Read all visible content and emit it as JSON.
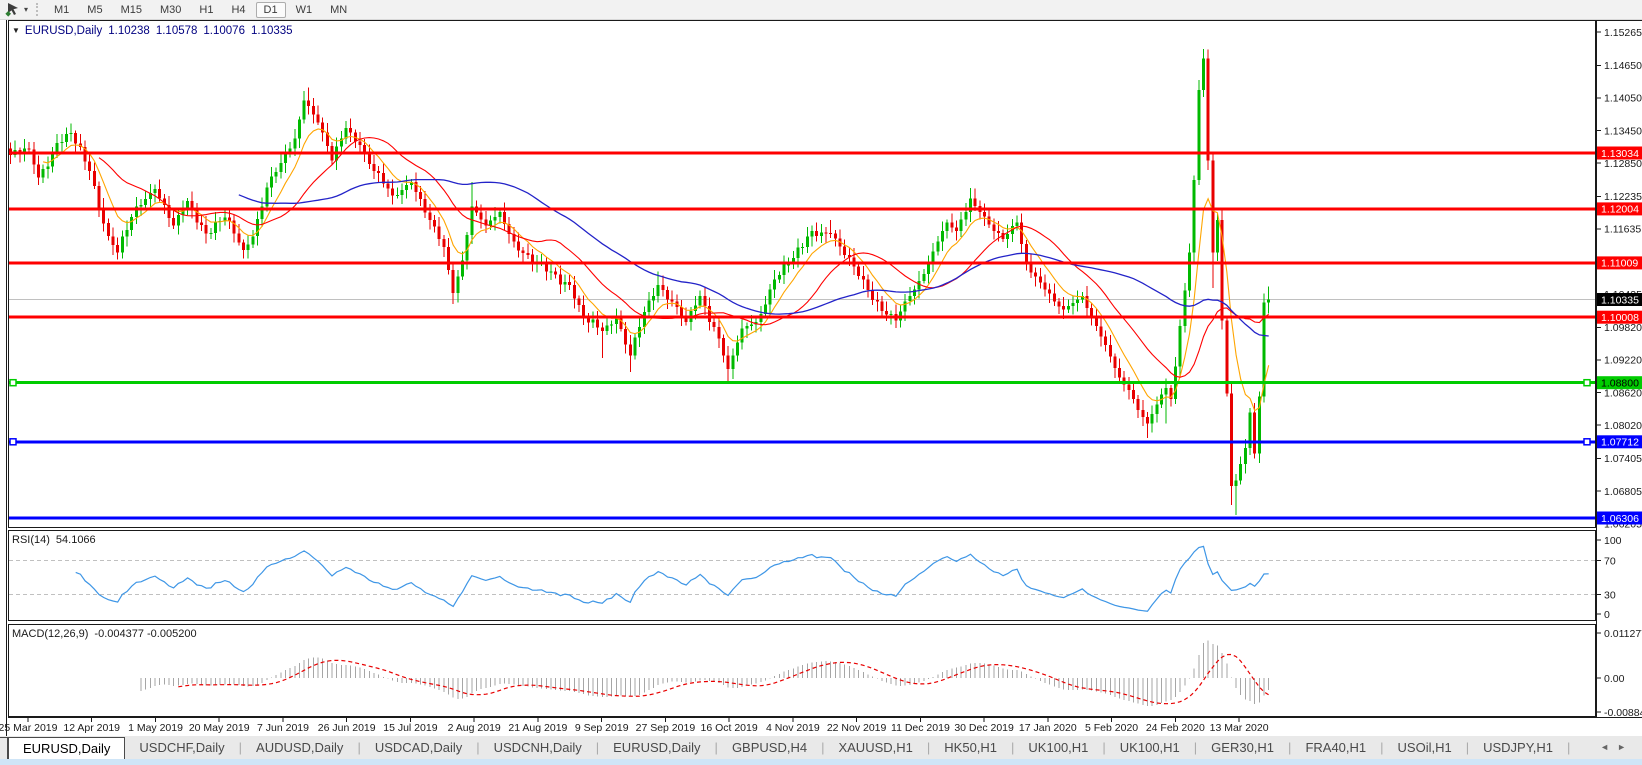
{
  "toolbar": {
    "chart_cursor_icon": "cursor-pointer-icon",
    "dropdown_glyph": "▾",
    "timeframes": [
      {
        "label": "M1",
        "active": false
      },
      {
        "label": "M5",
        "active": false
      },
      {
        "label": "M15",
        "active": false
      },
      {
        "label": "M30",
        "active": false
      },
      {
        "label": "H1",
        "active": false
      },
      {
        "label": "H4",
        "active": false
      },
      {
        "label": "D1",
        "active": true
      },
      {
        "label": "W1",
        "active": false
      },
      {
        "label": "MN",
        "active": false
      }
    ]
  },
  "chart_header": {
    "collapse_glyph": "▼",
    "symbol": "EURUSD,Daily",
    "open": "1.10238",
    "high": "1.10578",
    "low": "1.10076",
    "close": "1.10335"
  },
  "rsi_panel": {
    "title_label": "RSI(14)",
    "title_value": "54.1066",
    "scale_labels": [
      "100",
      "70",
      "30",
      "0"
    ],
    "overbought": 70,
    "oversold": 30
  },
  "macd_panel": {
    "title_label": "MACD(12,26,9)",
    "title_values": "-0.004377 -0.005200",
    "scale_labels": [
      "0.011277",
      "0.00",
      "-0.008845"
    ],
    "scale_values": [
      0.011277,
      0,
      -0.008845
    ]
  },
  "tabs": [
    {
      "label": "EURUSD,Daily",
      "active": true
    },
    {
      "label": "USDCHF,Daily",
      "active": false
    },
    {
      "label": "AUDUSD,Daily",
      "active": false
    },
    {
      "label": "USDCAD,Daily",
      "active": false
    },
    {
      "label": "USDCNH,Daily",
      "active": false
    },
    {
      "label": "EURUSD,Daily",
      "active": false
    },
    {
      "label": "GBPUSD,H4",
      "active": false
    },
    {
      "label": "XAUUSD,H1",
      "active": false
    },
    {
      "label": "HK50,H1",
      "active": false
    },
    {
      "label": "UK100,H1",
      "active": false
    },
    {
      "label": "UK100,H1",
      "active": false
    },
    {
      "label": "GER30,H1",
      "active": false
    },
    {
      "label": "FRA40,H1",
      "active": false
    },
    {
      "label": "USOil,H1",
      "active": false
    },
    {
      "label": "USDJPY,H1",
      "active": false
    }
  ],
  "tab_scroll": {
    "left_glyph": "◄",
    "right_glyph": "►"
  },
  "colors": {
    "candle_up": "#00B900",
    "candle_down": "#E80000",
    "ma_fast": "#FFA500",
    "ma_mid": "#FF0000",
    "ma_slow": "#2323C8",
    "bid_line": "#C0C0C0",
    "rsi_line": "#3E96E6",
    "rsi_level_dash": "#C0C0C0",
    "macd_hist": "#A6A6A6",
    "macd_signal": "#E80000",
    "axis_text": "#1a1a1a",
    "frame": "#1a1a1a"
  },
  "chart_data": {
    "type": "candlestick",
    "symbol": "EURUSD",
    "timeframe": "Daily",
    "title": "EURUSD,Daily",
    "ohlc_current": {
      "open": 1.10238,
      "high": 1.10578,
      "low": 1.10076,
      "close": 1.10335
    },
    "bid_price": 1.10335,
    "price_ticks": [
      1.15265,
      1.1465,
      1.1405,
      1.1345,
      1.1285,
      1.12235,
      1.11635,
      1.10435,
      1.0982,
      1.0922,
      1.0862,
      1.0802,
      1.07405,
      1.06805,
      1.06205
    ],
    "x_axis_dates": [
      "25 Mar 2019",
      "12 Apr 2019",
      "1 May 2019",
      "20 May 2019",
      "7 Jun 2019",
      "26 Jun 2019",
      "15 Jul 2019",
      "2 Aug 2019",
      "21 Aug 2019",
      "9 Sep 2019",
      "27 Sep 2019",
      "16 Oct 2019",
      "4 Nov 2019",
      "22 Nov 2019",
      "11 Dec 2019",
      "30 Dec 2019",
      "17 Jan 2020",
      "5 Feb 2020",
      "24 Feb 2020",
      "13 Mar 2020"
    ],
    "horizontal_lines": [
      {
        "price": 1.13034,
        "label": "1.13034",
        "color": "#FF0000",
        "text_color": "#FFFFFF",
        "handle": false
      },
      {
        "price": 1.12004,
        "label": "1.12004",
        "color": "#FF0000",
        "text_color": "#FFFFFF",
        "handle": false
      },
      {
        "price": 1.11009,
        "label": "1.11009",
        "color": "#FF0000",
        "text_color": "#FFFFFF",
        "handle": false
      },
      {
        "price": 1.10008,
        "label": "1.10008",
        "color": "#FF0000",
        "text_color": "#FFFFFF",
        "handle": false
      },
      {
        "price": 1.088,
        "label": "1.08800",
        "color": "#00CC00",
        "text_color": "#000000",
        "handle": true
      },
      {
        "price": 1.07712,
        "label": "1.07712",
        "color": "#0000FF",
        "text_color": "#FFFFFF",
        "handle": true
      },
      {
        "price": 1.06306,
        "label": "1.06306",
        "color": "#0000FF",
        "text_color": "#FFFFFF",
        "handle": false
      }
    ],
    "current_price_label": {
      "value": 1.10335,
      "label": "1.10335",
      "bg": "#000000",
      "text_color": "#FFFFFF"
    },
    "n_candles": 271,
    "close_anchors": [
      [
        0,
        1.13
      ],
      [
        4,
        1.131
      ],
      [
        6,
        1.1258
      ],
      [
        10,
        1.1322
      ],
      [
        13,
        1.134
      ],
      [
        17,
        1.127
      ],
      [
        21,
        1.115
      ],
      [
        23,
        1.112
      ],
      [
        27,
        1.1205
      ],
      [
        31,
        1.1237
      ],
      [
        35,
        1.117
      ],
      [
        38,
        1.1215
      ],
      [
        42,
        1.1155
      ],
      [
        46,
        1.1185
      ],
      [
        50,
        1.1125
      ],
      [
        52,
        1.115
      ],
      [
        55,
        1.124
      ],
      [
        58,
        1.1285
      ],
      [
        61,
        1.133
      ],
      [
        63,
        1.14
      ],
      [
        64,
        1.139
      ],
      [
        66,
        1.136
      ],
      [
        69,
        1.129
      ],
      [
        72,
        1.135
      ],
      [
        75,
        1.1318
      ],
      [
        78,
        1.127
      ],
      [
        82,
        1.1225
      ],
      [
        86,
        1.125
      ],
      [
        90,
        1.118
      ],
      [
        93,
        1.113
      ],
      [
        95,
        1.1045
      ],
      [
        97,
        1.1105
      ],
      [
        99,
        1.1205
      ],
      [
        102,
        1.117
      ],
      [
        105,
        1.1195
      ],
      [
        108,
        1.114
      ],
      [
        112,
        1.11
      ],
      [
        116,
        1.1085
      ],
      [
        120,
        1.106
      ],
      [
        123,
        1.0998
      ],
      [
        127,
        1.0975
      ],
      [
        130,
        1.1
      ],
      [
        133,
        1.093
      ],
      [
        136,
        1.101
      ],
      [
        139,
        1.106
      ],
      [
        142,
        1.103
      ],
      [
        145,
        1.0992
      ],
      [
        148,
        1.104
      ],
      [
        152,
        1.0962
      ],
      [
        154,
        1.0905
      ],
      [
        157,
        1.098
      ],
      [
        160,
        1.0992
      ],
      [
        164,
        1.107
      ],
      [
        168,
        1.111
      ],
      [
        172,
        1.116
      ],
      [
        176,
        1.1155
      ],
      [
        179,
        1.1115
      ],
      [
        183,
        1.107
      ],
      [
        187,
        1.1012
      ],
      [
        190,
        1.0995
      ],
      [
        193,
        1.104
      ],
      [
        196,
        1.108
      ],
      [
        199,
        1.114
      ],
      [
        201,
        1.1175
      ],
      [
        203,
        1.116
      ],
      [
        206,
        1.122
      ],
      [
        208,
        1.1195
      ],
      [
        211,
        1.116
      ],
      [
        213,
        1.1145
      ],
      [
        216,
        1.1175
      ],
      [
        218,
        1.11
      ],
      [
        221,
        1.1065
      ],
      [
        224,
        1.103
      ],
      [
        226,
        1.1015
      ],
      [
        228,
        1.1027
      ],
      [
        230,
        1.104
      ],
      [
        232,
        1.1
      ],
      [
        234,
        1.0965
      ],
      [
        236,
        1.0928
      ],
      [
        238,
        1.089
      ],
      [
        240,
        1.0867
      ],
      [
        242,
        1.083
      ],
      [
        244,
        1.0805
      ],
      [
        246,
        1.084
      ],
      [
        248,
        1.087
      ],
      [
        249,
        1.085
      ],
      [
        250,
        1.091
      ],
      [
        251,
        1.0985
      ],
      [
        252,
        1.105
      ],
      [
        253,
        1.112
      ],
      [
        254,
        1.1254
      ],
      [
        255,
        1.142
      ],
      [
        256,
        1.1478
      ],
      [
        257,
        1.129
      ],
      [
        258,
        1.112
      ],
      [
        259,
        1.118
      ],
      [
        260,
        1.0995
      ],
      [
        261,
        1.086
      ],
      [
        262,
        1.069
      ],
      [
        263,
        1.07
      ],
      [
        264,
        1.073
      ],
      [
        265,
        1.076
      ],
      [
        266,
        1.0825
      ],
      [
        267,
        1.075
      ],
      [
        268,
        1.0855
      ],
      [
        269,
        1.1028
      ],
      [
        270,
        1.10335
      ]
    ],
    "wick_overrides": {
      "64": {
        "h": 1.1424
      },
      "95": {
        "l": 1.1025
      },
      "99": {
        "h": 1.125
      },
      "127": {
        "l": 1.0926
      },
      "133": {
        "l": 1.09
      },
      "139": {
        "h": 1.1085
      },
      "154": {
        "l": 1.0879
      },
      "176": {
        "h": 1.118
      },
      "190": {
        "l": 1.0981
      },
      "206": {
        "h": 1.1239
      },
      "244": {
        "l": 1.0778
      },
      "248": {
        "l": 1.0805
      },
      "256": {
        "h": 1.1495
      },
      "258": {
        "l": 1.1055
      },
      "262": {
        "l": 1.0655
      },
      "263": {
        "l": 1.0636
      },
      "270": {
        "h": 1.10578,
        "l": 1.10076
      }
    },
    "moving_averages": [
      {
        "name": "fast",
        "method": "ema",
        "period": 8,
        "color": "#FFA500"
      },
      {
        "name": "mid",
        "method": "sma",
        "period": 20,
        "color": "#FF0000"
      },
      {
        "name": "slow",
        "method": "sma",
        "period": 50,
        "color": "#2323C8"
      }
    ],
    "indicators": [
      {
        "name": "RSI",
        "period": 14,
        "current_value": 54.1066,
        "levels": [
          70,
          30
        ],
        "scale": [
          0,
          100
        ]
      },
      {
        "name": "MACD",
        "fast_ema": 12,
        "slow_ema": 26,
        "signal_period": 9,
        "current_value": -0.004377,
        "current_signal": -0.0052,
        "scale_max": 0.011277,
        "scale_min": -0.008845
      }
    ]
  }
}
